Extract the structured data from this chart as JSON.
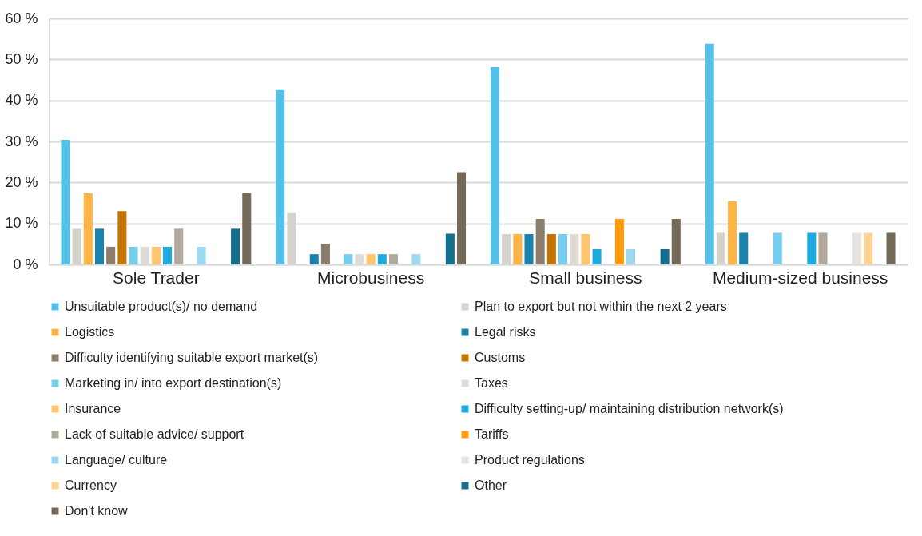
{
  "chart_data": {
    "type": "bar",
    "categories": [
      "Sole Trader",
      "Microbusiness",
      "Small business",
      "Medium-sized business"
    ],
    "ylim": [
      0,
      60
    ],
    "yticks": [
      {
        "value": 0,
        "label": "0 %"
      },
      {
        "value": 10,
        "label": "10 %"
      },
      {
        "value": 20,
        "label": "20 %"
      },
      {
        "value": 30,
        "label": "30 %"
      },
      {
        "value": 40,
        "label": "40 %"
      },
      {
        "value": 50,
        "label": "50 %"
      },
      {
        "value": 60,
        "label": "60 %"
      }
    ],
    "grid": "y",
    "legend": "bottom",
    "series": [
      {
        "name": "Unsuitable product(s)/ no demand",
        "color": "#56c1e8",
        "values": [
          30.4,
          42.5,
          48.1,
          53.8
        ]
      },
      {
        "name": "Plan to export but not within the next 2 years",
        "color": "#d6d2cc",
        "values": [
          8.7,
          12.5,
          7.4,
          7.7
        ]
      },
      {
        "name": "Logistics",
        "color": "#fdb446",
        "values": [
          17.4,
          null,
          7.4,
          15.4
        ]
      },
      {
        "name": "Legal risks",
        "color": "#1a82ab",
        "values": [
          8.7,
          2.5,
          7.4,
          7.7
        ]
      },
      {
        "name": "Difficulty identifying suitable export market(s)",
        "color": "#8c7d6b",
        "values": [
          4.3,
          5.0,
          11.1,
          null
        ]
      },
      {
        "name": "Customs",
        "color": "#c47400",
        "values": [
          13.0,
          null,
          7.4,
          null
        ]
      },
      {
        "name": "Marketing in/ into export destination(s)",
        "color": "#77cdef",
        "values": [
          4.3,
          2.5,
          7.4,
          7.7
        ]
      },
      {
        "name": "Taxes",
        "color": "#dedbd6",
        "values": [
          4.3,
          2.5,
          7.4,
          null
        ]
      },
      {
        "name": "Insurance",
        "color": "#fec46e",
        "values": [
          4.3,
          2.5,
          7.4,
          null
        ]
      },
      {
        "name": "Difficulty setting-up/ maintaining distribution network(s)",
        "color": "#1eabe0",
        "values": [
          4.3,
          2.5,
          3.7,
          7.7
        ]
      },
      {
        "name": "Lack of suitable advice/ support",
        "color": "#b2a89b",
        "values": [
          8.7,
          2.5,
          null,
          7.7
        ]
      },
      {
        "name": "Tariffs",
        "color": "#ff9b0a",
        "values": [
          null,
          null,
          11.1,
          null
        ]
      },
      {
        "name": "Language/ culture",
        "color": "#9dd9f1",
        "values": [
          4.3,
          2.5,
          3.7,
          null
        ]
      },
      {
        "name": "Product regulations",
        "color": "#e6e3df",
        "values": [
          null,
          null,
          null,
          7.7
        ]
      },
      {
        "name": "Currency",
        "color": "#ffd393",
        "values": [
          null,
          null,
          null,
          7.7
        ]
      },
      {
        "name": "Other",
        "color": "#146e8e",
        "values": [
          8.7,
          7.5,
          3.7,
          null
        ]
      },
      {
        "name": "Don't know",
        "color": "#756958",
        "values": [
          17.4,
          22.5,
          11.1,
          7.7
        ]
      }
    ]
  }
}
